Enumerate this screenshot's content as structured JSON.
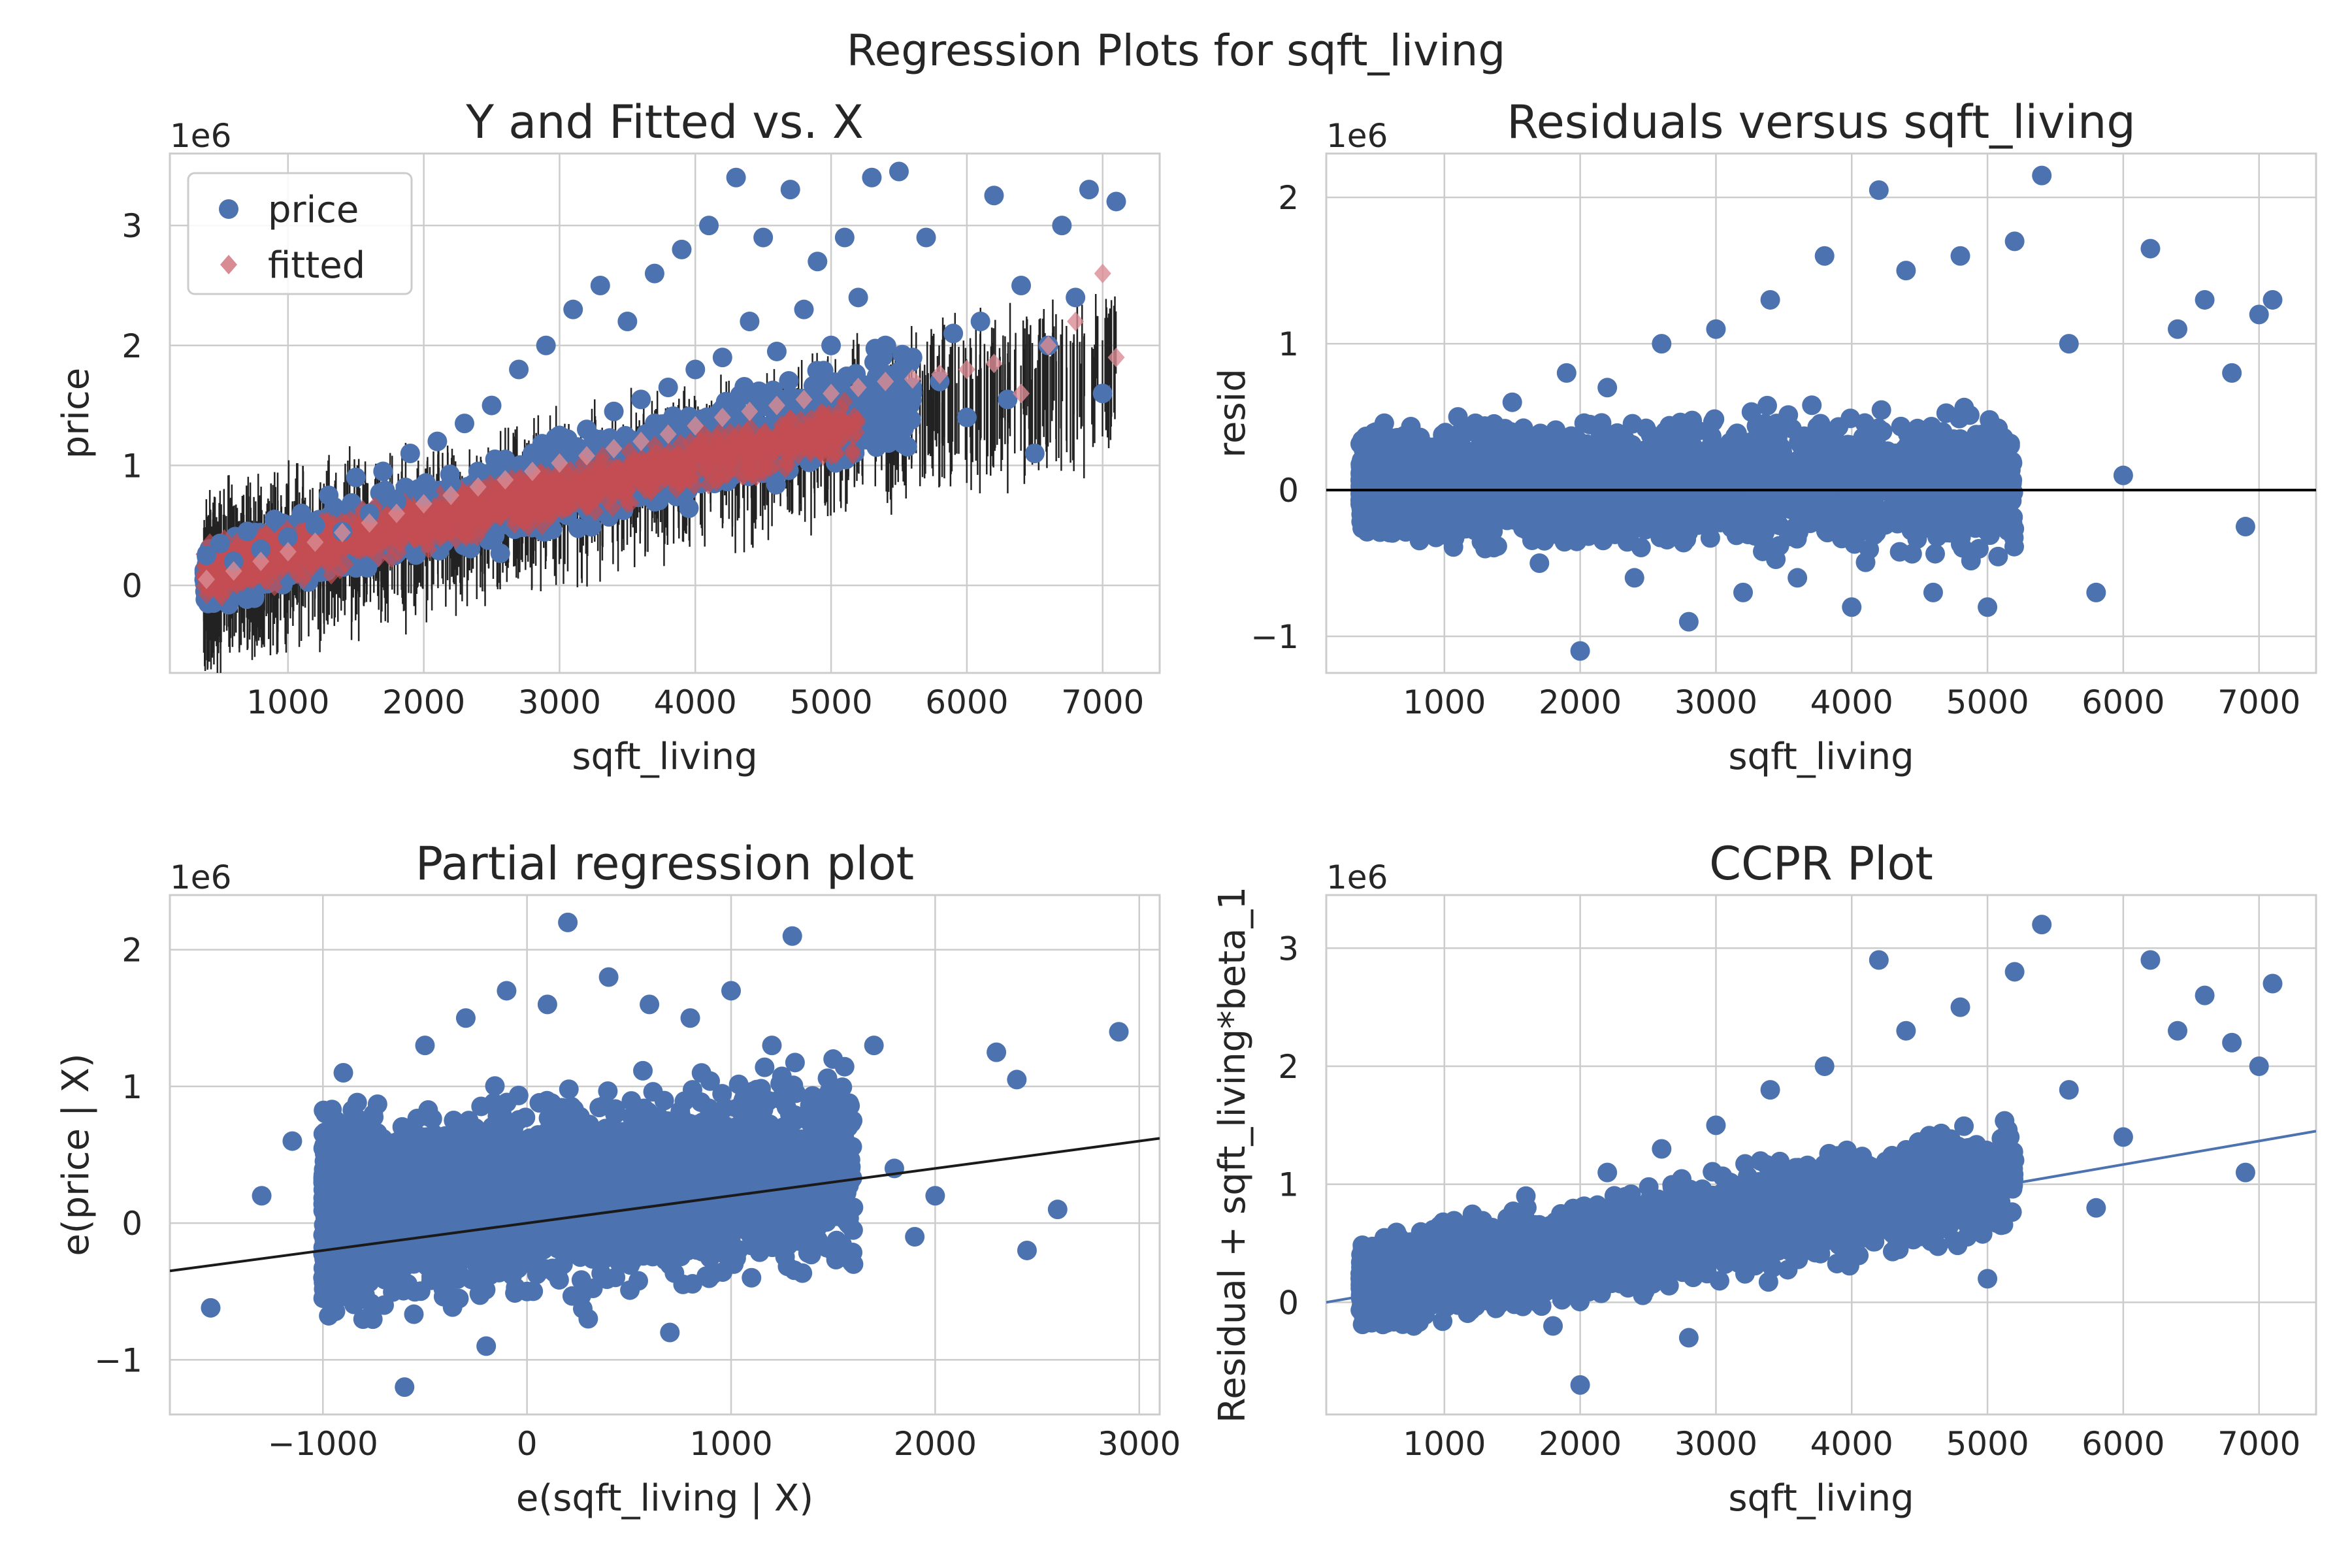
{
  "figure": {
    "suptitle": "Regression Plots for sqft_living"
  },
  "chart_data": [
    {
      "id": "yfit",
      "type": "scatter",
      "title": "Y and Fitted vs. X",
      "xlabel": "sqft_living",
      "ylabel": "price",
      "offset_text": "1e6",
      "xlim": [
        130,
        7420
      ],
      "ylim": [
        -0.73,
        3.6
      ],
      "xticks": [
        1000,
        2000,
        3000,
        4000,
        5000,
        6000,
        7000
      ],
      "xtick_labels": [
        "1000",
        "2000",
        "3000",
        "4000",
        "5000",
        "6000",
        "7000"
      ],
      "yticks": [
        0,
        1,
        2,
        3
      ],
      "ytick_labels": [
        "0",
        "1",
        "2",
        "3"
      ],
      "grid": true,
      "legend": {
        "placement": "upper-left",
        "entries": [
          {
            "label": "price",
            "marker": "circle",
            "color": "#4c72b0"
          },
          {
            "label": "fitted",
            "marker": "diamond",
            "color": "#dd8452"
          }
        ]
      },
      "series": [
        {
          "name": "price",
          "marker": "circle",
          "color": "#4c72b0",
          "points": [
            [
              400,
              0.25
            ],
            [
              500,
              0.35
            ],
            [
              600,
              0.2
            ],
            [
              700,
              0.45
            ],
            [
              800,
              0.3
            ],
            [
              900,
              0.55
            ],
            [
              1000,
              0.4
            ],
            [
              1100,
              0.6
            ],
            [
              1200,
              0.5
            ],
            [
              1300,
              0.75
            ],
            [
              1400,
              0.45
            ],
            [
              1500,
              0.9
            ],
            [
              1600,
              0.6
            ],
            [
              1700,
              0.95
            ],
            [
              1800,
              0.7
            ],
            [
              1900,
              1.1
            ],
            [
              2000,
              0.75
            ],
            [
              2100,
              1.2
            ],
            [
              2200,
              0.85
            ],
            [
              2300,
              1.35
            ],
            [
              2400,
              0.95
            ],
            [
              2500,
              1.5
            ],
            [
              2600,
              1.05
            ],
            [
              2700,
              1.8
            ],
            [
              2800,
              1.1
            ],
            [
              2900,
              2.0
            ],
            [
              3000,
              1.25
            ],
            [
              3100,
              2.3
            ],
            [
              3200,
              1.3
            ],
            [
              3300,
              2.5
            ],
            [
              3400,
              1.45
            ],
            [
              3500,
              2.2
            ],
            [
              3600,
              1.55
            ],
            [
              3700,
              2.6
            ],
            [
              3800,
              1.65
            ],
            [
              3900,
              2.8
            ],
            [
              4000,
              1.8
            ],
            [
              4100,
              3.0
            ],
            [
              4200,
              1.9
            ],
            [
              4300,
              3.4
            ],
            [
              4400,
              2.2
            ],
            [
              4500,
              2.9
            ],
            [
              4600,
              1.95
            ],
            [
              4700,
              3.3
            ],
            [
              4800,
              2.3
            ],
            [
              4900,
              2.7
            ],
            [
              5000,
              2.0
            ],
            [
              5100,
              2.9
            ],
            [
              5200,
              2.4
            ],
            [
              5300,
              3.4
            ],
            [
              5400,
              2.0
            ],
            [
              5500,
              3.45
            ],
            [
              5600,
              1.9
            ],
            [
              5700,
              2.9
            ],
            [
              5800,
              1.7
            ],
            [
              5900,
              2.1
            ],
            [
              6000,
              1.4
            ],
            [
              6100,
              2.2
            ],
            [
              6200,
              3.25
            ],
            [
              6300,
              1.55
            ],
            [
              6400,
              2.5
            ],
            [
              6500,
              1.1
            ],
            [
              6600,
              2.0
            ],
            [
              6700,
              3.0
            ],
            [
              6800,
              2.4
            ],
            [
              6900,
              3.3
            ],
            [
              7000,
              1.6
            ],
            [
              7100,
              3.2
            ]
          ]
        },
        {
          "name": "fitted",
          "marker": "diamond",
          "color": "#dd8452",
          "points": [
            [
              400,
              0.05
            ],
            [
              600,
              0.12
            ],
            [
              800,
              0.2
            ],
            [
              1000,
              0.28
            ],
            [
              1200,
              0.36
            ],
            [
              1400,
              0.44
            ],
            [
              1600,
              0.52
            ],
            [
              1800,
              0.6
            ],
            [
              2000,
              0.68
            ],
            [
              2200,
              0.75
            ],
            [
              2400,
              0.82
            ],
            [
              2600,
              0.88
            ],
            [
              2800,
              0.95
            ],
            [
              3000,
              1.02
            ],
            [
              3200,
              1.08
            ],
            [
              3400,
              1.14
            ],
            [
              3600,
              1.2
            ],
            [
              3800,
              1.26
            ],
            [
              4000,
              1.33
            ],
            [
              4200,
              1.4
            ],
            [
              4400,
              1.45
            ],
            [
              4600,
              1.5
            ],
            [
              4800,
              1.55
            ],
            [
              5000,
              1.6
            ],
            [
              5200,
              1.65
            ],
            [
              5400,
              1.7
            ],
            [
              5600,
              1.72
            ],
            [
              5800,
              1.76
            ],
            [
              6000,
              1.8
            ],
            [
              6200,
              1.85
            ],
            [
              6400,
              1.6
            ],
            [
              6600,
              2.0
            ],
            [
              6800,
              2.2
            ],
            [
              7000,
              2.6
            ],
            [
              7100,
              1.9
            ]
          ]
        }
      ]
    },
    {
      "id": "resid",
      "type": "scatter",
      "title": "Residuals versus sqft_living",
      "xlabel": "sqft_living",
      "ylabel": "resid",
      "offset_text": "1e6",
      "xlim": [
        130,
        7420
      ],
      "ylim": [
        -1.25,
        2.3
      ],
      "xticks": [
        1000,
        2000,
        3000,
        4000,
        5000,
        6000,
        7000
      ],
      "xtick_labels": [
        "1000",
        "2000",
        "3000",
        "4000",
        "5000",
        "6000",
        "7000"
      ],
      "yticks": [
        -1,
        0,
        1,
        2
      ],
      "ytick_labels": [
        "−1",
        "0",
        "1",
        "2"
      ],
      "grid": true,
      "reference_line": {
        "y": 0,
        "color": "#000000"
      },
      "series": [
        {
          "name": "resid",
          "marker": "circle",
          "color": "#4c72b0",
          "points": [
            [
              400,
              0.2
            ],
            [
              500,
              -0.1
            ],
            [
              700,
              0.3
            ],
            [
              900,
              -0.3
            ],
            [
              1100,
              0.5
            ],
            [
              1300,
              -0.4
            ],
            [
              1500,
              0.6
            ],
            [
              1700,
              -0.5
            ],
            [
              1900,
              0.8
            ],
            [
              2000,
              -1.1
            ],
            [
              2200,
              0.7
            ],
            [
              2400,
              -0.6
            ],
            [
              2600,
              1.0
            ],
            [
              2800,
              -0.9
            ],
            [
              3000,
              1.1
            ],
            [
              3200,
              -0.7
            ],
            [
              3400,
              1.3
            ],
            [
              3600,
              -0.6
            ],
            [
              3800,
              1.6
            ],
            [
              4000,
              -0.8
            ],
            [
              4200,
              2.05
            ],
            [
              4400,
              1.5
            ],
            [
              4600,
              -0.7
            ],
            [
              4800,
              1.6
            ],
            [
              5000,
              -0.8
            ],
            [
              5200,
              1.7
            ],
            [
              5400,
              2.15
            ],
            [
              5600,
              1.0
            ],
            [
              5800,
              -0.7
            ],
            [
              6000,
              0.1
            ],
            [
              6200,
              1.65
            ],
            [
              6400,
              1.1
            ],
            [
              6600,
              1.3
            ],
            [
              6800,
              0.8
            ],
            [
              6900,
              -0.25
            ],
            [
              7000,
              1.2
            ],
            [
              7100,
              1.3
            ]
          ]
        }
      ]
    },
    {
      "id": "partreg",
      "type": "scatter",
      "title": "Partial regression plot",
      "xlabel": "e(sqft_living | X)",
      "ylabel": "e(price | X)",
      "offset_text": "1e6",
      "xlim": [
        -1750,
        3100
      ],
      "ylim": [
        -1.4,
        2.4
      ],
      "xticks": [
        -1000,
        0,
        1000,
        2000,
        3000
      ],
      "xtick_labels": [
        "−1000",
        "0",
        "1000",
        "2000",
        "3000"
      ],
      "yticks": [
        -1,
        0,
        1,
        2
      ],
      "ytick_labels": [
        "−1",
        "0",
        "1",
        "2"
      ],
      "grid": true,
      "fit_line": {
        "x": [
          -1750,
          3100
        ],
        "y": [
          -0.35,
          0.62
        ],
        "color": "#1a1a1a"
      },
      "series": [
        {
          "name": "e(price | X)",
          "marker": "circle",
          "color": "#4c72b0",
          "points": [
            [
              -1550,
              -0.62
            ],
            [
              -1300,
              0.2
            ],
            [
              -1150,
              0.6
            ],
            [
              -1000,
              -0.4
            ],
            [
              -900,
              1.1
            ],
            [
              -800,
              0.5
            ],
            [
              -700,
              -0.6
            ],
            [
              -600,
              -1.2
            ],
            [
              -500,
              1.3
            ],
            [
              -400,
              -0.5
            ],
            [
              -300,
              1.5
            ],
            [
              -200,
              -0.9
            ],
            [
              -100,
              1.7
            ],
            [
              0,
              -0.5
            ],
            [
              100,
              1.6
            ],
            [
              200,
              2.2
            ],
            [
              300,
              -0.7
            ],
            [
              400,
              1.8
            ],
            [
              500,
              0.0
            ],
            [
              600,
              1.6
            ],
            [
              700,
              -0.8
            ],
            [
              800,
              1.5
            ],
            [
              900,
              0.4
            ],
            [
              1000,
              1.7
            ],
            [
              1100,
              -0.4
            ],
            [
              1200,
              1.3
            ],
            [
              1300,
              2.1
            ],
            [
              1400,
              0.5
            ],
            [
              1500,
              1.2
            ],
            [
              1600,
              -0.3
            ],
            [
              1700,
              1.3
            ],
            [
              1800,
              0.4
            ],
            [
              1900,
              -0.1
            ],
            [
              2000,
              0.2
            ],
            [
              2300,
              1.25
            ],
            [
              2400,
              1.05
            ],
            [
              2450,
              -0.2
            ],
            [
              2600,
              0.1
            ],
            [
              2900,
              1.4
            ]
          ]
        }
      ]
    },
    {
      "id": "ccpr",
      "type": "scatter",
      "title": "CCPR Plot",
      "xlabel": "sqft_living",
      "ylabel": "Residual + sqft_living*beta_1",
      "offset_text": "1e6",
      "xlim": [
        130,
        7420
      ],
      "ylim": [
        -0.95,
        3.45
      ],
      "xticks": [
        1000,
        2000,
        3000,
        4000,
        5000,
        6000,
        7000
      ],
      "xtick_labels": [
        "1000",
        "2000",
        "3000",
        "4000",
        "5000",
        "6000",
        "7000"
      ],
      "yticks": [
        0,
        1,
        2,
        3
      ],
      "ytick_labels": [
        "0",
        "1",
        "2",
        "3"
      ],
      "grid": true,
      "fit_line": {
        "x": [
          130,
          7420
        ],
        "y": [
          0.0,
          1.45
        ],
        "color": "#4c72b0"
      },
      "series": [
        {
          "name": "ccpr",
          "marker": "circle",
          "color": "#4c72b0",
          "points": [
            [
              400,
              0.25
            ],
            [
              600,
              -0.1
            ],
            [
              800,
              0.5
            ],
            [
              1000,
              0.2
            ],
            [
              1200,
              0.7
            ],
            [
              1400,
              0.1
            ],
            [
              1600,
              0.9
            ],
            [
              1800,
              -0.2
            ],
            [
              2000,
              -0.7
            ],
            [
              2200,
              1.1
            ],
            [
              2400,
              0.3
            ],
            [
              2600,
              1.3
            ],
            [
              2800,
              -0.3
            ],
            [
              3000,
              1.5
            ],
            [
              3200,
              0.8
            ],
            [
              3400,
              1.8
            ],
            [
              3600,
              0.5
            ],
            [
              3800,
              2.0
            ],
            [
              4000,
              1.0
            ],
            [
              4200,
              2.9
            ],
            [
              4400,
              2.3
            ],
            [
              4600,
              0.9
            ],
            [
              4800,
              2.5
            ],
            [
              5000,
              0.2
            ],
            [
              5200,
              2.8
            ],
            [
              5400,
              3.2
            ],
            [
              5600,
              1.8
            ],
            [
              5800,
              0.8
            ],
            [
              6000,
              1.4
            ],
            [
              6200,
              2.9
            ],
            [
              6400,
              2.3
            ],
            [
              6600,
              2.6
            ],
            [
              6800,
              2.2
            ],
            [
              6900,
              1.1
            ],
            [
              7000,
              2.0
            ],
            [
              7100,
              2.7
            ]
          ]
        }
      ]
    }
  ]
}
